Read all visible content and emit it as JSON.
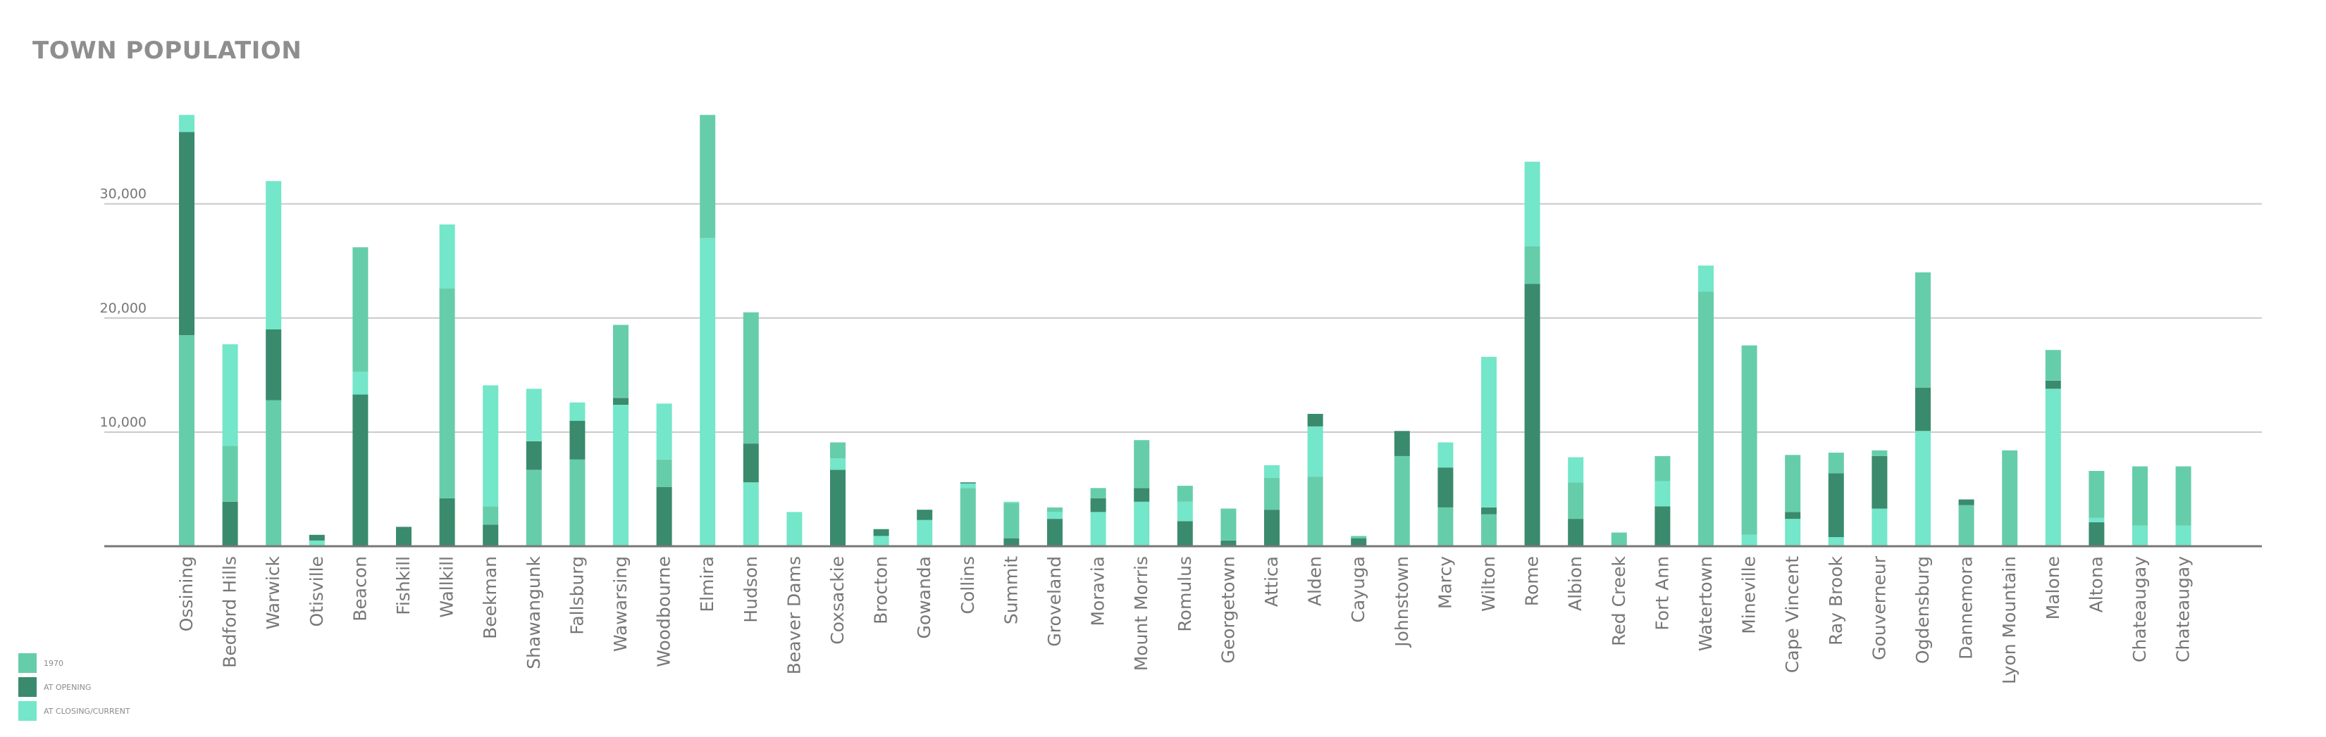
{
  "chart_data": {
    "type": "bar",
    "stacked": true,
    "title": "TOWN POPULATION",
    "xlabel": "",
    "ylabel": "",
    "ylim": [
      0,
      38000
    ],
    "yticks": [
      10000,
      20000,
      30000
    ],
    "ytick_labels": [
      "10,000",
      "20,000",
      "30,000"
    ],
    "grid": true,
    "legend_position": "bottom-left",
    "series": [
      {
        "name": "1970",
        "color": "#66cdaa"
      },
      {
        "name": "AT OPENING",
        "color": "#3a8a6e"
      },
      {
        "name": "AT CLOSING/CURRENT",
        "color": "#74e6c9"
      }
    ],
    "categories": [
      "Ossining",
      "Bedford Hills",
      "Warwick",
      "Otisville",
      "Beacon",
      "Fishkill",
      "Wallkill",
      "Beekman",
      "Shawangunk",
      "Fallsburg",
      "Wawarsing",
      "Woodbourne",
      "Elmira",
      "Hudson",
      "Beaver Dams",
      "Coxsackie",
      "Brocton",
      "Gowanda",
      "Collins",
      "Summit",
      "Groveland",
      "Moravia",
      "Mount Morris",
      "Romulus",
      "Georgetown",
      "Attica",
      "Alden",
      "Cayuga",
      "Johnstown",
      "Marcy",
      "Wilton",
      "Rome",
      "Albion",
      "Red Creek",
      "Fort Ann",
      "Watertown",
      "Mineville",
      "Cape Vincent",
      "Ray Brook",
      "Gouverneur",
      "Ogdensburg",
      "Dannemora",
      "Lyon Mountain",
      "Malone",
      "Altona",
      "Chateaugay",
      "Chateaugay"
    ],
    "segments": [
      [
        [
          1,
          18500
        ],
        [
          2,
          36300
        ],
        [
          3,
          37800
        ]
      ],
      [
        [
          2,
          3900
        ],
        [
          1,
          8800
        ],
        [
          3,
          17700
        ]
      ],
      [
        [
          1,
          12800
        ],
        [
          2,
          19000
        ],
        [
          3,
          32000
        ]
      ],
      [
        [
          3,
          500
        ],
        [
          2,
          1000
        ]
      ],
      [
        [
          2,
          13300
        ],
        [
          3,
          15300
        ],
        [
          1,
          26200
        ]
      ],
      [
        [
          2,
          1700
        ]
      ],
      [
        [
          2,
          4200
        ],
        [
          1,
          22600
        ],
        [
          3,
          28200
        ]
      ],
      [
        [
          2,
          1900
        ],
        [
          1,
          3500
        ],
        [
          3,
          14100
        ]
      ],
      [
        [
          1,
          6700
        ],
        [
          2,
          9200
        ],
        [
          3,
          13800
        ]
      ],
      [
        [
          1,
          7600
        ],
        [
          2,
          11000
        ],
        [
          3,
          12600
        ]
      ],
      [
        [
          3,
          12400
        ],
        [
          2,
          13000
        ],
        [
          1,
          19400
        ]
      ],
      [
        [
          2,
          5200
        ],
        [
          1,
          7600
        ],
        [
          3,
          12500
        ]
      ],
      [
        [
          3,
          27000
        ],
        [
          1,
          37800
        ]
      ],
      [
        [
          3,
          5600
        ],
        [
          2,
          9000
        ],
        [
          1,
          20500
        ]
      ],
      [
        [
          3,
          3000
        ]
      ],
      [
        [
          2,
          6700
        ],
        [
          3,
          7700
        ],
        [
          1,
          9100
        ]
      ],
      [
        [
          3,
          900
        ],
        [
          2,
          1500
        ]
      ],
      [
        [
          3,
          2300
        ],
        [
          2,
          3200
        ]
      ],
      [
        [
          1,
          5100
        ],
        [
          3,
          5500
        ],
        [
          2,
          5600
        ]
      ],
      [
        [
          2,
          700
        ],
        [
          1,
          3800
        ],
        [
          3,
          3900
        ]
      ],
      [
        [
          2,
          2400
        ],
        [
          3,
          3000
        ],
        [
          1,
          3400
        ]
      ],
      [
        [
          3,
          3000
        ],
        [
          2,
          4200
        ],
        [
          1,
          5100
        ]
      ],
      [
        [
          3,
          3900
        ],
        [
          2,
          5100
        ],
        [
          1,
          9300
        ]
      ],
      [
        [
          2,
          2200
        ],
        [
          3,
          3900
        ],
        [
          1,
          5300
        ]
      ],
      [
        [
          2,
          500
        ],
        [
          1,
          3300
        ]
      ],
      [
        [
          2,
          3200
        ],
        [
          1,
          6000
        ],
        [
          3,
          7100
        ]
      ],
      [
        [
          1,
          6100
        ],
        [
          3,
          10500
        ],
        [
          2,
          11600
        ]
      ],
      [
        [
          2,
          700
        ],
        [
          1,
          900
        ]
      ],
      [
        [
          1,
          7900
        ],
        [
          2,
          10100
        ]
      ],
      [
        [
          1,
          3400
        ],
        [
          2,
          6900
        ],
        [
          3,
          9100
        ]
      ],
      [
        [
          1,
          2800
        ],
        [
          2,
          3400
        ],
        [
          3,
          16600
        ]
      ],
      [
        [
          2,
          23000
        ],
        [
          1,
          26300
        ],
        [
          3,
          33700
        ]
      ],
      [
        [
          2,
          2400
        ],
        [
          1,
          5600
        ],
        [
          3,
          7800
        ]
      ],
      [
        [
          1,
          1200
        ]
      ],
      [
        [
          2,
          3500
        ],
        [
          3,
          5700
        ],
        [
          1,
          7900
        ]
      ],
      [
        [
          1,
          22300
        ],
        [
          3,
          24600
        ]
      ],
      [
        [
          3,
          1000
        ],
        [
          1,
          17600
        ]
      ],
      [
        [
          3,
          2400
        ],
        [
          2,
          3000
        ],
        [
          1,
          8000
        ]
      ],
      [
        [
          3,
          800
        ],
        [
          2,
          6400
        ],
        [
          1,
          8200
        ]
      ],
      [
        [
          3,
          3300
        ],
        [
          2,
          7900
        ],
        [
          1,
          8400
        ]
      ],
      [
        [
          3,
          10100
        ],
        [
          2,
          13900
        ],
        [
          1,
          24000
        ]
      ],
      [
        [
          1,
          3600
        ],
        [
          2,
          4100
        ]
      ],
      [
        [
          1,
          8400
        ]
      ],
      [
        [
          3,
          13800
        ],
        [
          2,
          14500
        ],
        [
          1,
          17200
        ]
      ],
      [
        [
          2,
          2100
        ],
        [
          3,
          2500
        ],
        [
          1,
          6600
        ]
      ],
      [
        [
          3,
          1800
        ],
        [
          1,
          7000
        ]
      ],
      [
        [
          3,
          1800
        ],
        [
          1,
          7000
        ]
      ]
    ]
  }
}
